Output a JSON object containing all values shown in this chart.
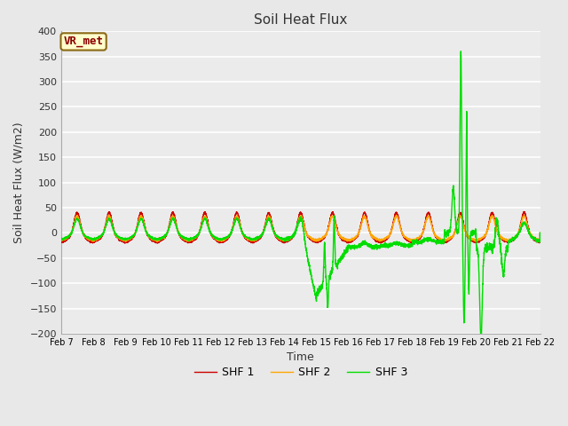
{
  "title": "Soil Heat Flux",
  "xlabel": "Time",
  "ylabel": "Soil Heat Flux (W/m2)",
  "ylim": [
    -200,
    400
  ],
  "yticks": [
    -200,
    -150,
    -100,
    -50,
    0,
    50,
    100,
    150,
    200,
    250,
    300,
    350,
    400
  ],
  "fig_bg_color": "#e8e8e8",
  "plot_bg_color": "#ebebeb",
  "grid_color": "#ffffff",
  "line_colors": {
    "SHF 1": "#cc0000",
    "SHF 2": "#ffa500",
    "SHF 3": "#00dd00"
  },
  "line_widths": {
    "SHF 1": 1.0,
    "SHF 2": 1.0,
    "SHF 3": 1.0
  },
  "legend_label": "VR_met",
  "vr_box_facecolor": "#ffffcc",
  "vr_box_edgecolor": "#8b6914",
  "vr_text_color": "#8b0000",
  "xtick_labels": [
    "Feb 7",
    "Feb 8",
    "Feb 9",
    "Feb 10",
    "Feb 11",
    "Feb 12",
    "Feb 13",
    "Feb 14",
    "Feb 15",
    "Feb 16",
    "Feb 17",
    "Feb 18",
    "Feb 19",
    "Feb 20",
    "Feb 21",
    "Feb 22"
  ],
  "tick_fontsize": 8,
  "label_fontsize": 9,
  "title_fontsize": 11
}
